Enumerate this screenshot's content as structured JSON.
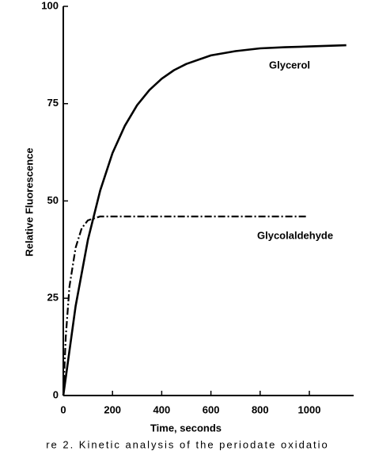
{
  "chart_data": {
    "type": "line",
    "xlabel": "Time, seconds",
    "ylabel": "Relative Fluorescence",
    "caption": "re 2. Kinetic analysis of the periodate oxidatio",
    "xlim": [
      0,
      1180
    ],
    "ylim": [
      0,
      100
    ],
    "xticks": [
      0,
      200,
      400,
      600,
      800,
      1000
    ],
    "yticks": [
      0,
      25,
      50,
      75,
      100
    ],
    "series": [
      {
        "name": "Glycerol",
        "color": "#000000",
        "line_style": "solid",
        "x": [
          0,
          50,
          100,
          150,
          200,
          250,
          300,
          350,
          400,
          450,
          500,
          600,
          700,
          800,
          900,
          1000,
          1100,
          1150
        ],
        "values": [
          0,
          23,
          40,
          52.7,
          62.3,
          69.3,
          74.6,
          78.5,
          81.4,
          83.6,
          85.2,
          87.4,
          88.5,
          89.2,
          89.5,
          89.7,
          89.9,
          90
        ]
      },
      {
        "name": "Glycolaldehyde",
        "color": "#000000",
        "line_style": "dashdot",
        "x": [
          0,
          10,
          25,
          50,
          75,
          100,
          150,
          200,
          400,
          600,
          800,
          990
        ],
        "values": [
          0,
          15,
          28,
          38,
          43,
          45,
          46,
          46,
          46,
          46,
          46,
          46
        ]
      }
    ]
  }
}
